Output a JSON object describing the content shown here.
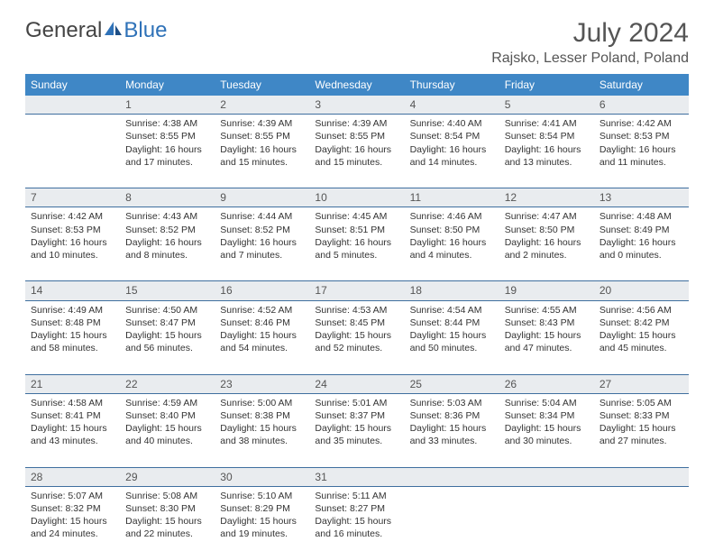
{
  "logo": {
    "text1": "General",
    "text2": "Blue"
  },
  "title": "July 2024",
  "location": "Rajsko, Lesser Poland, Poland",
  "colors": {
    "header_bg": "#3f87c6",
    "header_text": "#ffffff",
    "daynum_bg": "#e9ecef",
    "border": "#3f6f9f",
    "body_text": "#333333",
    "logo_blue": "#2f72b8"
  },
  "weekdays": [
    "Sunday",
    "Monday",
    "Tuesday",
    "Wednesday",
    "Thursday",
    "Friday",
    "Saturday"
  ],
  "weeks": [
    {
      "nums": [
        "",
        "1",
        "2",
        "3",
        "4",
        "5",
        "6"
      ],
      "cells": [
        null,
        {
          "sunrise": "Sunrise: 4:38 AM",
          "sunset": "Sunset: 8:55 PM",
          "day1": "Daylight: 16 hours",
          "day2": "and 17 minutes."
        },
        {
          "sunrise": "Sunrise: 4:39 AM",
          "sunset": "Sunset: 8:55 PM",
          "day1": "Daylight: 16 hours",
          "day2": "and 15 minutes."
        },
        {
          "sunrise": "Sunrise: 4:39 AM",
          "sunset": "Sunset: 8:55 PM",
          "day1": "Daylight: 16 hours",
          "day2": "and 15 minutes."
        },
        {
          "sunrise": "Sunrise: 4:40 AM",
          "sunset": "Sunset: 8:54 PM",
          "day1": "Daylight: 16 hours",
          "day2": "and 14 minutes."
        },
        {
          "sunrise": "Sunrise: 4:41 AM",
          "sunset": "Sunset: 8:54 PM",
          "day1": "Daylight: 16 hours",
          "day2": "and 13 minutes."
        },
        {
          "sunrise": "Sunrise: 4:42 AM",
          "sunset": "Sunset: 8:53 PM",
          "day1": "Daylight: 16 hours",
          "day2": "and 11 minutes."
        }
      ]
    },
    {
      "nums": [
        "7",
        "8",
        "9",
        "10",
        "11",
        "12",
        "13"
      ],
      "cells": [
        {
          "sunrise": "Sunrise: 4:42 AM",
          "sunset": "Sunset: 8:53 PM",
          "day1": "Daylight: 16 hours",
          "day2": "and 10 minutes."
        },
        {
          "sunrise": "Sunrise: 4:43 AM",
          "sunset": "Sunset: 8:52 PM",
          "day1": "Daylight: 16 hours",
          "day2": "and 8 minutes."
        },
        {
          "sunrise": "Sunrise: 4:44 AM",
          "sunset": "Sunset: 8:52 PM",
          "day1": "Daylight: 16 hours",
          "day2": "and 7 minutes."
        },
        {
          "sunrise": "Sunrise: 4:45 AM",
          "sunset": "Sunset: 8:51 PM",
          "day1": "Daylight: 16 hours",
          "day2": "and 5 minutes."
        },
        {
          "sunrise": "Sunrise: 4:46 AM",
          "sunset": "Sunset: 8:50 PM",
          "day1": "Daylight: 16 hours",
          "day2": "and 4 minutes."
        },
        {
          "sunrise": "Sunrise: 4:47 AM",
          "sunset": "Sunset: 8:50 PM",
          "day1": "Daylight: 16 hours",
          "day2": "and 2 minutes."
        },
        {
          "sunrise": "Sunrise: 4:48 AM",
          "sunset": "Sunset: 8:49 PM",
          "day1": "Daylight: 16 hours",
          "day2": "and 0 minutes."
        }
      ]
    },
    {
      "nums": [
        "14",
        "15",
        "16",
        "17",
        "18",
        "19",
        "20"
      ],
      "cells": [
        {
          "sunrise": "Sunrise: 4:49 AM",
          "sunset": "Sunset: 8:48 PM",
          "day1": "Daylight: 15 hours",
          "day2": "and 58 minutes."
        },
        {
          "sunrise": "Sunrise: 4:50 AM",
          "sunset": "Sunset: 8:47 PM",
          "day1": "Daylight: 15 hours",
          "day2": "and 56 minutes."
        },
        {
          "sunrise": "Sunrise: 4:52 AM",
          "sunset": "Sunset: 8:46 PM",
          "day1": "Daylight: 15 hours",
          "day2": "and 54 minutes."
        },
        {
          "sunrise": "Sunrise: 4:53 AM",
          "sunset": "Sunset: 8:45 PM",
          "day1": "Daylight: 15 hours",
          "day2": "and 52 minutes."
        },
        {
          "sunrise": "Sunrise: 4:54 AM",
          "sunset": "Sunset: 8:44 PM",
          "day1": "Daylight: 15 hours",
          "day2": "and 50 minutes."
        },
        {
          "sunrise": "Sunrise: 4:55 AM",
          "sunset": "Sunset: 8:43 PM",
          "day1": "Daylight: 15 hours",
          "day2": "and 47 minutes."
        },
        {
          "sunrise": "Sunrise: 4:56 AM",
          "sunset": "Sunset: 8:42 PM",
          "day1": "Daylight: 15 hours",
          "day2": "and 45 minutes."
        }
      ]
    },
    {
      "nums": [
        "21",
        "22",
        "23",
        "24",
        "25",
        "26",
        "27"
      ],
      "cells": [
        {
          "sunrise": "Sunrise: 4:58 AM",
          "sunset": "Sunset: 8:41 PM",
          "day1": "Daylight: 15 hours",
          "day2": "and 43 minutes."
        },
        {
          "sunrise": "Sunrise: 4:59 AM",
          "sunset": "Sunset: 8:40 PM",
          "day1": "Daylight: 15 hours",
          "day2": "and 40 minutes."
        },
        {
          "sunrise": "Sunrise: 5:00 AM",
          "sunset": "Sunset: 8:38 PM",
          "day1": "Daylight: 15 hours",
          "day2": "and 38 minutes."
        },
        {
          "sunrise": "Sunrise: 5:01 AM",
          "sunset": "Sunset: 8:37 PM",
          "day1": "Daylight: 15 hours",
          "day2": "and 35 minutes."
        },
        {
          "sunrise": "Sunrise: 5:03 AM",
          "sunset": "Sunset: 8:36 PM",
          "day1": "Daylight: 15 hours",
          "day2": "and 33 minutes."
        },
        {
          "sunrise": "Sunrise: 5:04 AM",
          "sunset": "Sunset: 8:34 PM",
          "day1": "Daylight: 15 hours",
          "day2": "and 30 minutes."
        },
        {
          "sunrise": "Sunrise: 5:05 AM",
          "sunset": "Sunset: 8:33 PM",
          "day1": "Daylight: 15 hours",
          "day2": "and 27 minutes."
        }
      ]
    },
    {
      "nums": [
        "28",
        "29",
        "30",
        "31",
        "",
        "",
        ""
      ],
      "cells": [
        {
          "sunrise": "Sunrise: 5:07 AM",
          "sunset": "Sunset: 8:32 PM",
          "day1": "Daylight: 15 hours",
          "day2": "and 24 minutes."
        },
        {
          "sunrise": "Sunrise: 5:08 AM",
          "sunset": "Sunset: 8:30 PM",
          "day1": "Daylight: 15 hours",
          "day2": "and 22 minutes."
        },
        {
          "sunrise": "Sunrise: 5:10 AM",
          "sunset": "Sunset: 8:29 PM",
          "day1": "Daylight: 15 hours",
          "day2": "and 19 minutes."
        },
        {
          "sunrise": "Sunrise: 5:11 AM",
          "sunset": "Sunset: 8:27 PM",
          "day1": "Daylight: 15 hours",
          "day2": "and 16 minutes."
        },
        null,
        null,
        null
      ]
    }
  ]
}
